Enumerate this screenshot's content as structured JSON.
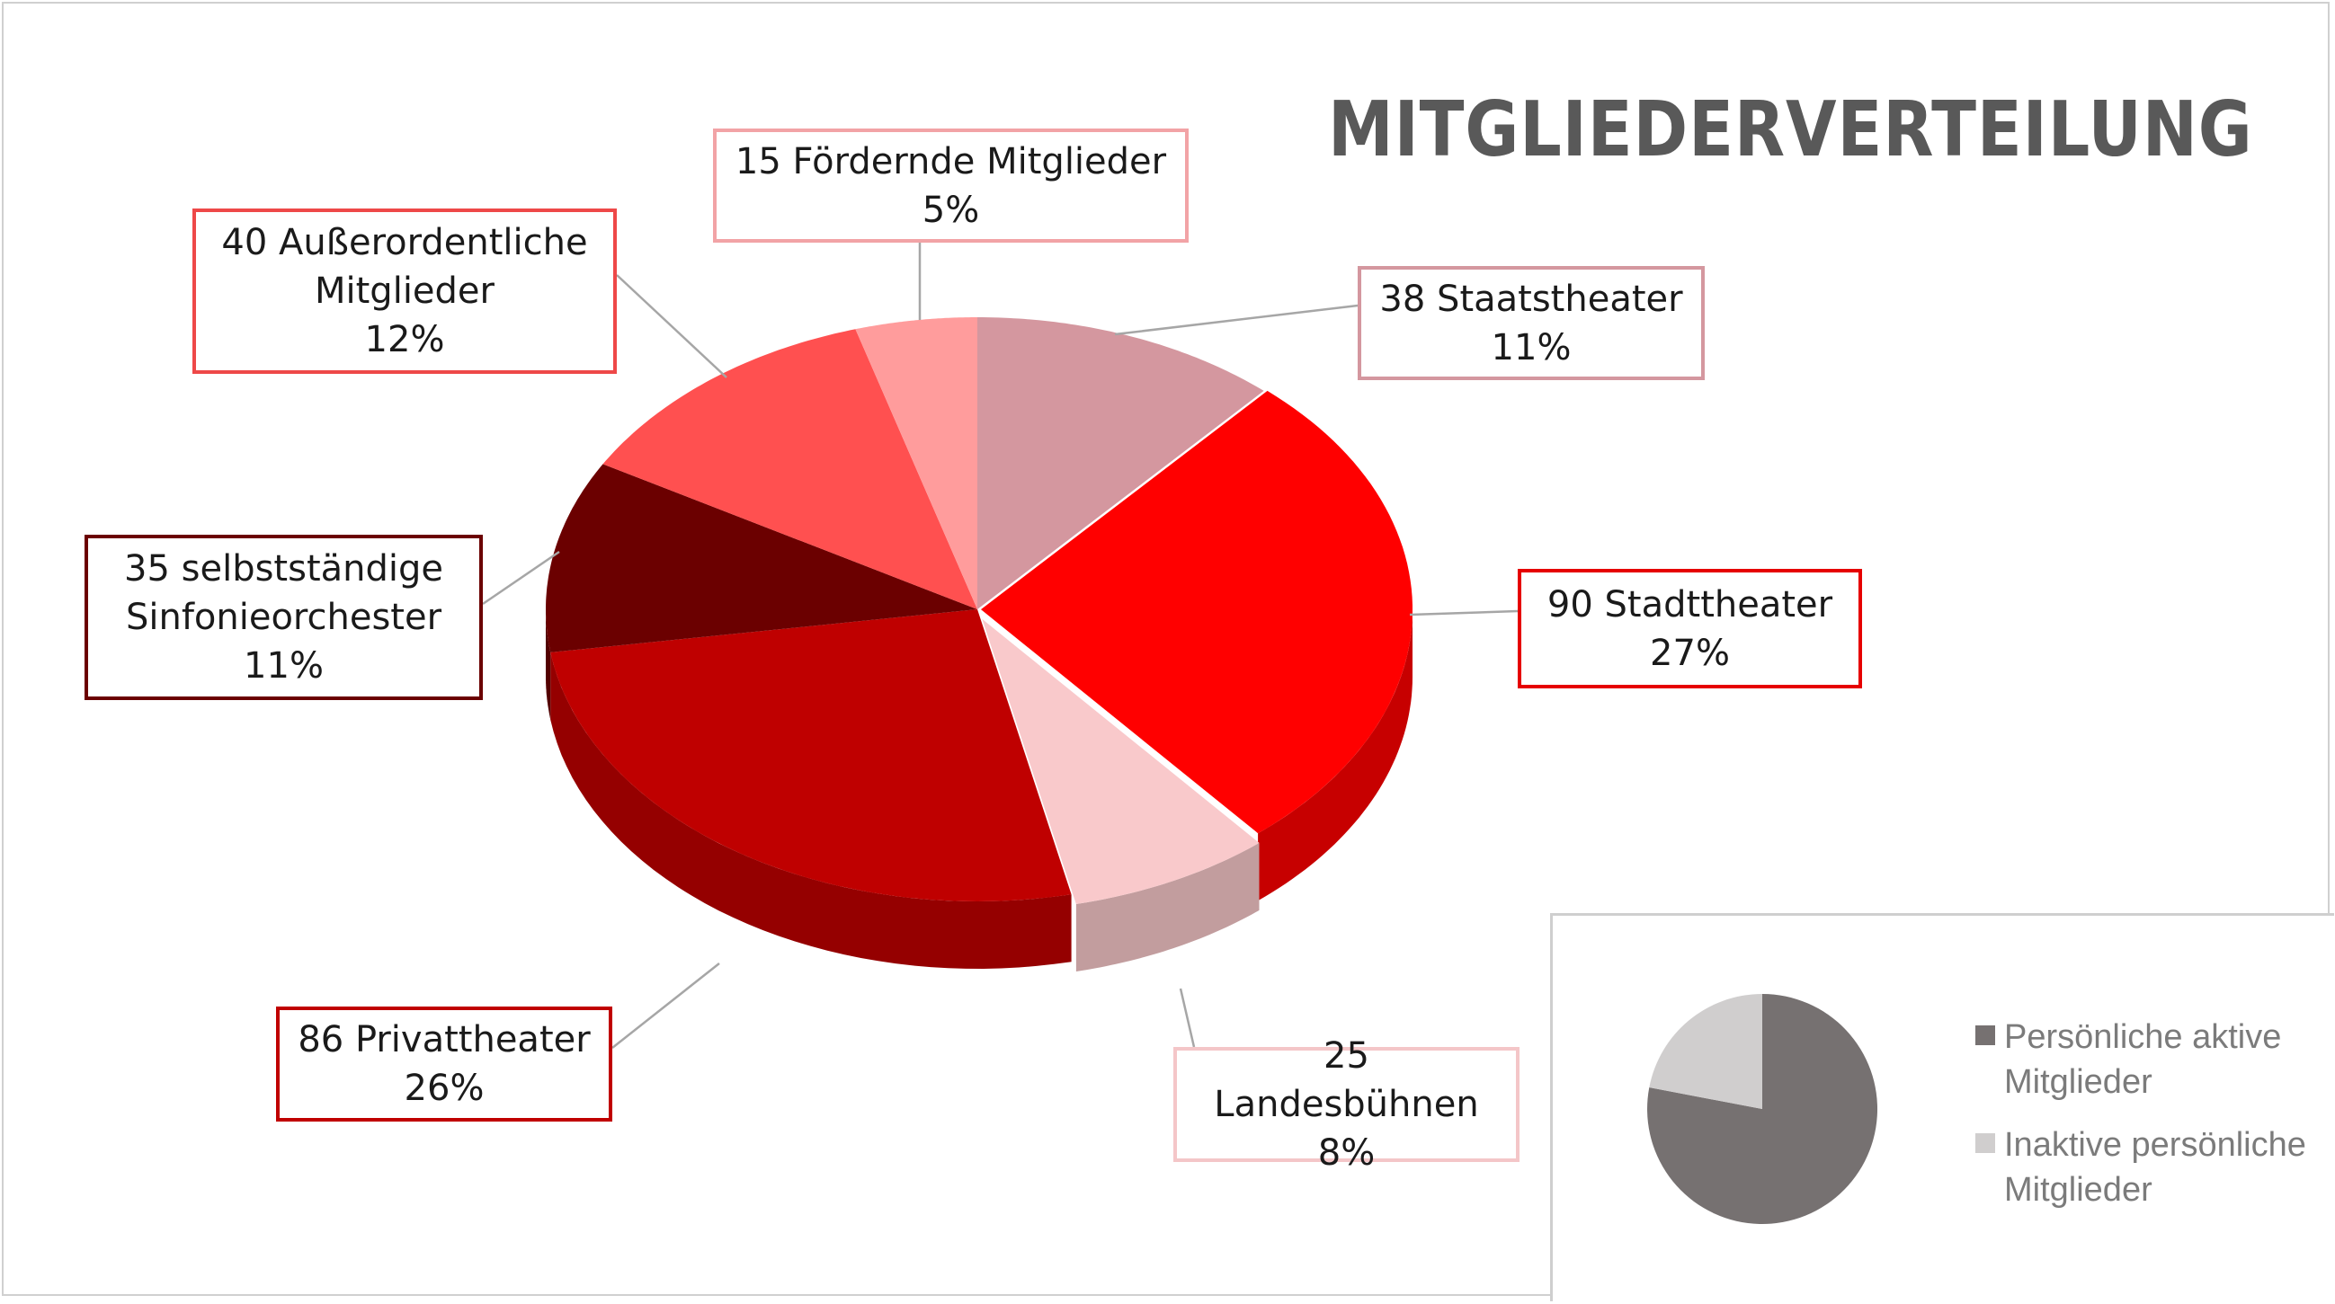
{
  "title": "MITGLIEDERVERTEILUNG",
  "chart_data": [
    {
      "type": "pie",
      "title": "MITGLIEDERVERTEILUNG",
      "style": "3d-exploded",
      "slices": [
        {
          "key": "staatstheater",
          "name": "Staatstheater",
          "value": 38,
          "percent": "11%",
          "color": "#d4979f",
          "border": "#d4979f"
        },
        {
          "key": "stadttheater",
          "name": "Stadttheater",
          "value": 90,
          "percent": "27%",
          "color": "#ff0000",
          "border": "#e60000"
        },
        {
          "key": "landesbuehnen",
          "name": "Landesbühnen",
          "value": 25,
          "percent": "8%",
          "color": "#f9c9cb",
          "border": "#f4c6c8"
        },
        {
          "key": "privattheater",
          "name": "Privattheater",
          "value": 86,
          "percent": "26%",
          "color": "#bf0000",
          "border": "#c00000"
        },
        {
          "key": "sinfonieorchester",
          "name": "selbstständige\nSinfonieorchester",
          "value": 35,
          "percent": "11%",
          "color": "#6b0000",
          "border": "#6b0000"
        },
        {
          "key": "ausserordentliche",
          "name": "Außerordentliche\nMitglieder",
          "value": 40,
          "percent": "12%",
          "color": "#ff5050",
          "border": "#ee4848"
        },
        {
          "key": "foerdernde",
          "name": "Fördernde Mitglieder",
          "value": 15,
          "percent": "5%",
          "color": "#ff9c9c",
          "border": "#f2a3a6"
        }
      ]
    },
    {
      "type": "pie",
      "legend_position": "right",
      "slices": [
        {
          "name": "Persönliche aktive Mitglieder",
          "value": 78,
          "color": "#767171"
        },
        {
          "name": "Inaktive persönliche Mitglieder",
          "value": 22,
          "color": "#d0cece"
        }
      ]
    }
  ]
}
